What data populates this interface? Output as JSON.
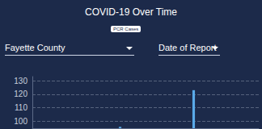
{
  "chart_data": {
    "type": "bar",
    "title": "COVID-19 Over Time",
    "annotations": [
      "PCR Cases",
      "Fayette County",
      "Date of Report"
    ],
    "categories": [
      null,
      null,
      null,
      null,
      null,
      null,
      null,
      null,
      null,
      null,
      null,
      null,
      null,
      null,
      null,
      null,
      null,
      null,
      null,
      null,
      null,
      null,
      null,
      null,
      null,
      null,
      null,
      null,
      null,
      null,
      null,
      null,
      null,
      null,
      null,
      null,
      null,
      null,
      null,
      null
    ],
    "values": [
      null,
      null,
      null,
      null,
      null,
      null,
      null,
      null,
      null,
      null,
      null,
      null,
      null,
      null,
      null,
      96,
      null,
      null,
      null,
      null,
      null,
      null,
      null,
      null,
      null,
      null,
      null,
      null,
      123,
      null,
      null,
      null,
      null,
      null,
      null,
      null,
      null,
      null,
      null,
      null
    ],
    "color": "#5aaae8",
    "ylim": [
      95,
      133
    ],
    "yticks": [
      100,
      110,
      120,
      130
    ],
    "grid": true,
    "tick_labels": "y"
  }
}
